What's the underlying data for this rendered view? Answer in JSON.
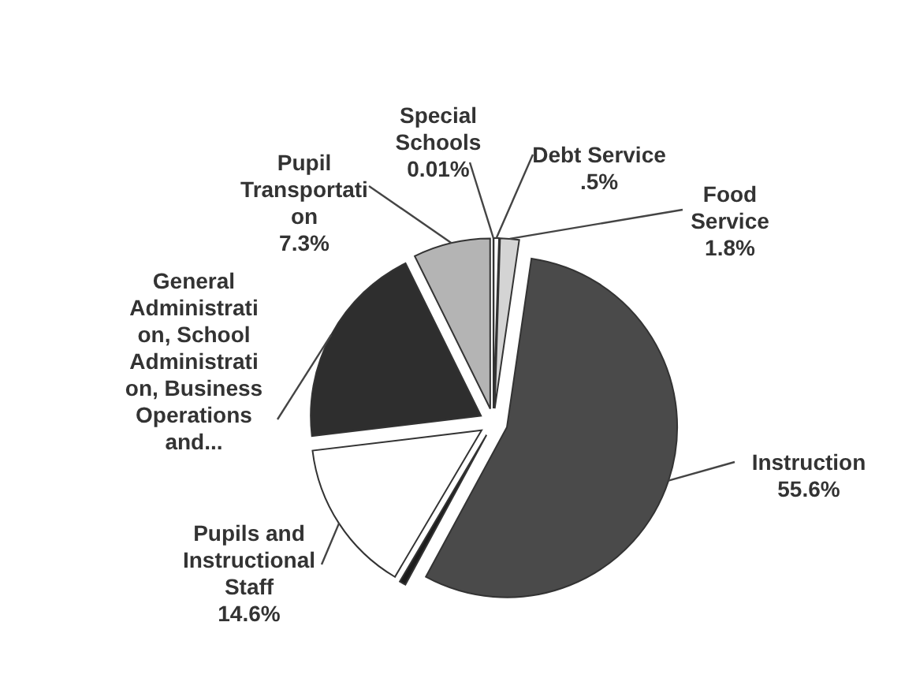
{
  "chart_data": {
    "type": "pie",
    "categories": [
      "Debt Service",
      "Food Service",
      "Instruction",
      null,
      "Pupils and Instructional Staff",
      "General Administration, School Administration, Business Operations and...",
      "Pupil Transportation",
      "Special Schools"
    ],
    "values": [
      0.5,
      1.8,
      55.6,
      0.6,
      14.6,
      19.59,
      7.3,
      0.01
    ],
    "colors": [
      "#ffffff",
      "#d4d4d4",
      "#4a4a4a",
      "#1c1c1c",
      "#ffffff",
      "#2e2e2e",
      "#b4b4b4",
      "#1c1c1c"
    ],
    "value_labels": [
      ".5%",
      "1.8%",
      "55.6%",
      null,
      "14.6%",
      null,
      "7.3%",
      "0.01%"
    ]
  }
}
